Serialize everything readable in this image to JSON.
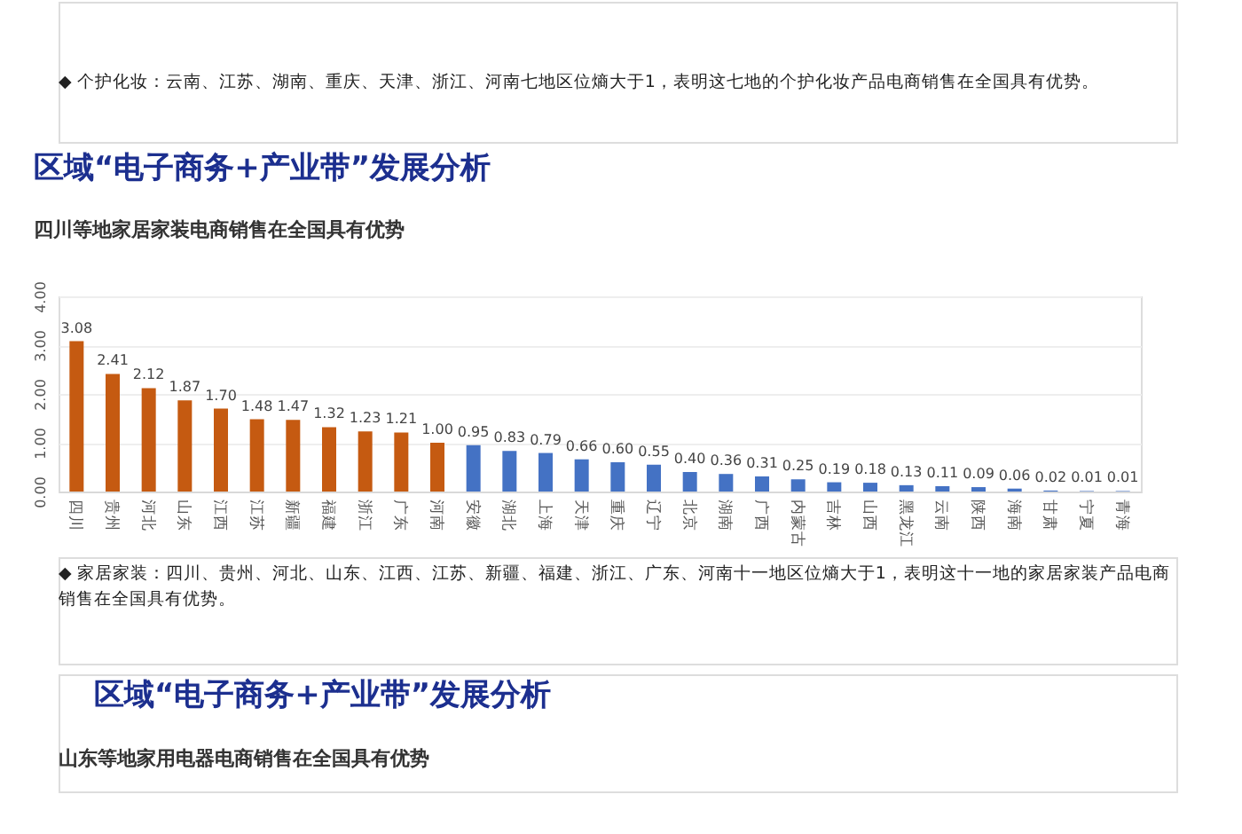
{
  "chart_data": [
    {
      "type": "other",
      "annotations": [
        "◆ 个护化妆：云南、江苏、湖南、重庆、天津、浙江、河南七地区位熵大于1，表明这七地的个护化妆产品电商销售在全国具有优势。"
      ]
    },
    {
      "type": "bar",
      "title": "区域“电子商务+产业带”发展分析",
      "subtitle": "四川等地家居家装电商销售在全国具有优势",
      "categories": [
        "四川",
        "贵州",
        "河北",
        "山东",
        "江西",
        "江苏",
        "新疆",
        "福建",
        "浙江",
        "广东",
        "河南",
        "安徽",
        "湖北",
        "上海",
        "天津",
        "重庆",
        "辽宁",
        "北京",
        "湖南",
        "广西",
        "内蒙古",
        "吉林",
        "山西",
        "黑龙江",
        "云南",
        "陕西",
        "海南",
        "甘肃",
        "宁夏",
        "青海"
      ],
      "values": [
        3.08,
        2.41,
        2.12,
        1.87,
        1.7,
        1.48,
        1.47,
        1.32,
        1.23,
        1.21,
        1.0,
        0.95,
        0.83,
        0.79,
        0.66,
        0.6,
        0.55,
        0.4,
        0.36,
        0.31,
        0.25,
        0.19,
        0.18,
        0.13,
        0.11,
        0.09,
        0.06,
        0.02,
        0.01,
        0.01
      ],
      "value_labels": [
        "3.08",
        "2.41",
        "2.12",
        "1.87",
        "1.70",
        "1.48",
        "1.47",
        "1.32",
        "1.23",
        "1.21",
        "1.00",
        "0.95",
        "0.83",
        "0.79",
        "0.66",
        "0.60",
        "0.55",
        "0.40",
        "0.36",
        "0.31",
        "0.25",
        "0.19",
        "0.18",
        "0.13",
        "0.11",
        "0.09",
        "0.06",
        "0.02",
        "0.01",
        "0.01"
      ],
      "colors": [
        "#c55a11",
        "#c55a11",
        "#c55a11",
        "#c55a11",
        "#c55a11",
        "#c55a11",
        "#c55a11",
        "#c55a11",
        "#c55a11",
        "#c55a11",
        "#c55a11",
        "#4472c4",
        "#4472c4",
        "#4472c4",
        "#4472c4",
        "#4472c4",
        "#4472c4",
        "#4472c4",
        "#4472c4",
        "#4472c4",
        "#4472c4",
        "#4472c4",
        "#4472c4",
        "#4472c4",
        "#4472c4",
        "#4472c4",
        "#4472c4",
        "#4472c4",
        "#4472c4",
        "#4472c4"
      ],
      "ylim": [
        0,
        4
      ],
      "yticks": [
        {
          "value": 0,
          "label": "0.00"
        },
        {
          "value": 1,
          "label": "1.00"
        },
        {
          "value": 2,
          "label": "2.00"
        },
        {
          "value": 3,
          "label": "3.00"
        },
        {
          "value": 4,
          "label": "4.00"
        }
      ],
      "grid": "y",
      "annotations": [
        "◆ 家居家装：四川、贵州、河北、山东、江西、江苏、新疆、福建、浙江、广东、河南十一地区位熵大于1，表明这十一地的家居家装产品电商销售在全国具有优势。"
      ]
    },
    {
      "type": "other",
      "title": "区域“电子商务+产业带”发展分析",
      "subtitle": "山东等地家用电器电商销售在全国具有优势"
    }
  ]
}
